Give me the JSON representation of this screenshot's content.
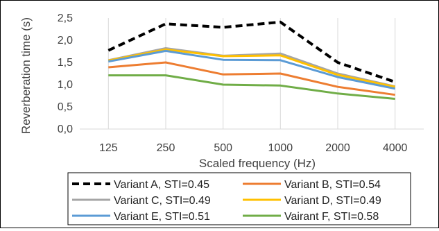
{
  "chart_data": {
    "type": "line",
    "title": "",
    "xlabel": "Scaled frequency (Hz)",
    "ylabel": "Reverberation time (s)",
    "ylim": [
      0,
      2.5
    ],
    "yticks": [
      "0,0",
      "0,5",
      "1,0",
      "1,5",
      "2,0",
      "2,5"
    ],
    "categories": [
      "125",
      "250",
      "500",
      "1000",
      "2000",
      "4000"
    ],
    "grid": "vertical",
    "legend": "bottom",
    "series": [
      {
        "name": "Variant A, STI=0.45",
        "values": [
          1.77,
          2.37,
          2.29,
          2.41,
          1.5,
          1.06
        ],
        "color": "#000000",
        "dashed": true
      },
      {
        "name": "Variant B, STI=0.54",
        "values": [
          1.39,
          1.5,
          1.23,
          1.25,
          0.95,
          0.77
        ],
        "color": "#ED7D31",
        "dashed": false
      },
      {
        "name": "Variant C, STI=0.49",
        "values": [
          1.55,
          1.82,
          1.65,
          1.7,
          1.25,
          0.96
        ],
        "color": "#A5A5A5",
        "dashed": false
      },
      {
        "name": "Variant D, STI=0.49",
        "values": [
          1.54,
          1.79,
          1.64,
          1.66,
          1.22,
          0.95
        ],
        "color": "#FFC000",
        "dashed": false
      },
      {
        "name": "Variant E, STI=0.51",
        "values": [
          1.52,
          1.76,
          1.56,
          1.55,
          1.17,
          0.91
        ],
        "color": "#5B9BD5",
        "dashed": false
      },
      {
        "name": "Vairant F, STI=0.58",
        "values": [
          1.21,
          1.21,
          1.0,
          0.98,
          0.8,
          0.68
        ],
        "color": "#70AD47",
        "dashed": false
      }
    ]
  }
}
